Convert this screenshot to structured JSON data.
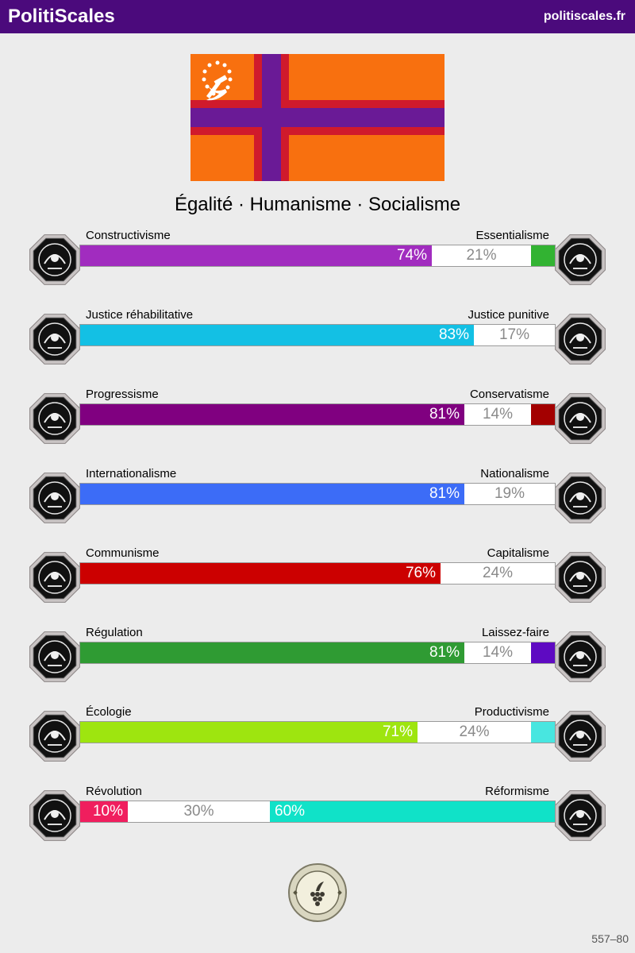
{
  "header": {
    "brand": "PolitiScales",
    "site": "politiscales.fr"
  },
  "flag": {
    "name": "flag-emblem",
    "colors": {
      "field": "#f8700f",
      "cross": "#6a1a96",
      "border": "#d01a2c",
      "emblem": "#ffffff"
    }
  },
  "slogan": "Égalité · Humanisme · Socialisme",
  "axes": [
    {
      "left_label": "Constructivisme",
      "right_label": "Essentialisme",
      "left_value": 74,
      "middle_value": 21,
      "right_value": 5,
      "left_text": "74%",
      "middle_text": "21%",
      "right_text": "",
      "left_color": "#a12cbf",
      "right_color": "#32b332",
      "left_icon": "eye-icon",
      "right_icon": "flower-icon"
    },
    {
      "left_label": "Justice réhabilitative",
      "right_label": "Justice punitive",
      "left_value": 83,
      "middle_value": 17,
      "right_value": 0,
      "left_text": "83%",
      "middle_text": "17%",
      "right_text": "",
      "left_color": "#13c0e4",
      "right_color": "#888888",
      "left_icon": "handshake-icon",
      "right_icon": "prison-bars-icon"
    },
    {
      "left_label": "Progressisme",
      "right_label": "Conservatisme",
      "left_value": 81,
      "middle_value": 14,
      "right_value": 5,
      "left_text": "81%",
      "middle_text": "14%",
      "right_text": "",
      "left_color": "#800080",
      "right_color": "#a30000",
      "left_icon": "rocket-icon",
      "right_icon": "quill-icon"
    },
    {
      "left_label": "Internationalisme",
      "right_label": "Nationalisme",
      "left_value": 81,
      "middle_value": 19,
      "right_value": 0,
      "left_text": "81%",
      "middle_text": "19%",
      "right_text": "",
      "left_color": "#3c6cf7",
      "right_color": "#888888",
      "left_icon": "globe-icon",
      "right_icon": "flag-icon"
    },
    {
      "left_label": "Communisme",
      "right_label": "Capitalisme",
      "left_value": 76,
      "middle_value": 24,
      "right_value": 0,
      "left_text": "76%",
      "middle_text": "24%",
      "right_text": "",
      "left_color": "#cc0000",
      "right_color": "#888888",
      "left_icon": "hammer-sickle-icon",
      "right_icon": "money-bag-icon"
    },
    {
      "left_label": "Régulation",
      "right_label": "Laissez-faire",
      "left_value": 81,
      "middle_value": 14,
      "right_value": 5,
      "left_text": "81%",
      "middle_text": "14%",
      "right_text": "",
      "left_color": "#2f9b33",
      "right_color": "#5e0ac2",
      "left_icon": "ruler-icon",
      "right_icon": "butterfly-icon"
    },
    {
      "left_label": "Écologie",
      "right_label": "Productivisme",
      "left_value": 71,
      "middle_value": 24,
      "right_value": 5,
      "left_text": "71%",
      "middle_text": "24%",
      "right_text": "",
      "left_color": "#9ee50f",
      "right_color": "#48e6e0",
      "left_icon": "plant-icon",
      "right_icon": "gear-icon"
    },
    {
      "left_label": "Révolution",
      "right_label": "Réformisme",
      "left_value": 10,
      "middle_value": 30,
      "right_value": 60,
      "left_text": "10%",
      "middle_text": "30%",
      "right_text": "60%",
      "left_color": "#f01e5e",
      "right_color": "#10e2c8",
      "left_icon": "fist-icon",
      "right_icon": "ballot-box-icon"
    }
  ],
  "seal": {
    "name": "seal-icon"
  },
  "footer": {
    "code": "557–80"
  }
}
